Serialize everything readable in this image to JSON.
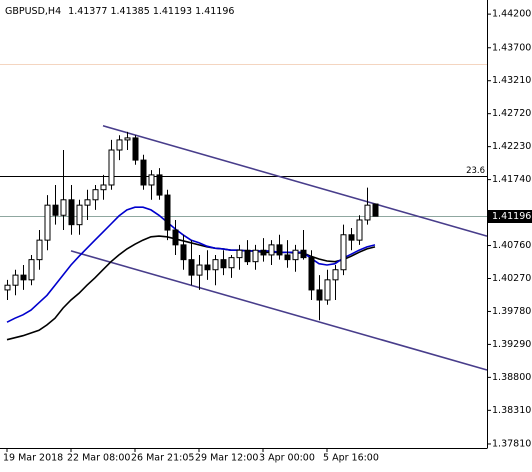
{
  "chart_data": {
    "type": "candlestick",
    "symbol": "GBPUSD,H4",
    "categories": [
      "19 Mar 2018",
      null,
      null,
      null,
      null,
      null,
      null,
      null,
      "22 Mar 08:00",
      null,
      null,
      null,
      null,
      null,
      null,
      null,
      "26 Mar 21:05",
      null,
      null,
      null,
      null,
      null,
      null,
      null,
      "29 Mar 12:00",
      null,
      null,
      null,
      null,
      null,
      null,
      null,
      "3 Apr 00:00",
      null,
      null,
      null,
      null,
      null,
      null,
      null,
      "5 Apr 16:00",
      null,
      null,
      null,
      null,
      null,
      null
    ],
    "candles": {
      "open": [
        1.401,
        1.4017,
        1.4032,
        1.4025,
        1.4055,
        1.4084,
        1.4136,
        1.4121,
        1.4144,
        1.4107,
        1.4136,
        1.4144,
        1.4159,
        1.4166,
        1.4218,
        1.4233,
        1.4236,
        1.4203,
        1.4166,
        1.4181,
        1.4151,
        1.4099,
        1.4077,
        1.4055,
        1.4032,
        1.4047,
        1.404,
        1.4055,
        1.4043,
        1.4058,
        1.4069,
        1.4052,
        1.4069,
        1.4062,
        1.4077,
        1.4062,
        1.4055,
        1.4069,
        1.4058,
        1.401,
        1.3995,
        1.4025,
        1.404,
        1.4092,
        1.4084,
        1.4114,
        1.41377
      ],
      "high": [
        1.4025,
        1.404,
        1.4047,
        1.4062,
        1.4099,
        1.4151,
        1.4166,
        1.4218,
        1.4166,
        1.4144,
        1.4159,
        1.4166,
        1.4181,
        1.4233,
        1.424,
        1.4245,
        1.424,
        1.4211,
        1.4188,
        1.4191,
        1.4159,
        1.4114,
        1.4092,
        1.4084,
        1.4062,
        1.4069,
        1.4062,
        1.4069,
        1.4062,
        1.4077,
        1.4084,
        1.4077,
        1.4087,
        1.4084,
        1.4092,
        1.4084,
        1.4077,
        1.4099,
        1.4069,
        1.4032,
        1.404,
        1.4047,
        1.4107,
        1.4102,
        1.4121,
        1.4162,
        1.41385
      ],
      "low": [
        1.3995,
        1.4002,
        1.401,
        1.4017,
        1.404,
        1.4069,
        1.4107,
        1.4099,
        1.4092,
        1.4092,
        1.4114,
        1.4129,
        1.4144,
        1.4159,
        1.4203,
        1.4218,
        1.4196,
        1.4159,
        1.4144,
        1.4144,
        1.4084,
        1.4062,
        1.404,
        1.4017,
        1.401,
        1.4025,
        1.4017,
        1.4032,
        1.4028,
        1.404,
        1.4047,
        1.404,
        1.4052,
        1.4047,
        1.4055,
        1.4043,
        1.4037,
        1.4055,
        1.3995,
        1.3965,
        1.3988,
        1.3995,
        1.4032,
        1.4069,
        1.4077,
        1.4107,
        1.41193
      ],
      "close": [
        1.4017,
        1.4032,
        1.4025,
        1.4055,
        1.4084,
        1.4136,
        1.4121,
        1.4144,
        1.4107,
        1.4136,
        1.4144,
        1.4159,
        1.4166,
        1.4218,
        1.4233,
        1.4236,
        1.4203,
        1.4166,
        1.4181,
        1.4151,
        1.4099,
        1.4077,
        1.4055,
        1.4032,
        1.4047,
        1.404,
        1.4055,
        1.4043,
        1.4058,
        1.4069,
        1.4052,
        1.4069,
        1.4062,
        1.4077,
        1.4062,
        1.4055,
        1.4069,
        1.4058,
        1.401,
        1.3995,
        1.4025,
        1.404,
        1.4092,
        1.4084,
        1.4114,
        1.4136,
        1.41196
      ]
    },
    "overlays": [
      {
        "color": "#000000",
        "values": [
          1.3936,
          1.3939,
          1.3942,
          1.3946,
          1.395,
          1.3958,
          1.3968,
          1.3983,
          1.3995,
          1.4005,
          1.4017,
          1.4028,
          1.404,
          1.4052,
          1.4062,
          1.4071,
          1.4078,
          1.4084,
          1.4089,
          1.409,
          1.4089,
          1.4086,
          1.4083,
          1.408,
          1.4077,
          1.4074,
          1.4072,
          1.4071,
          1.4069,
          1.4069,
          1.4068,
          1.4068,
          1.4066,
          1.4066,
          1.4066,
          1.4066,
          1.4065,
          1.4065,
          1.406,
          1.4056,
          1.4053,
          1.4052,
          1.4055,
          1.406,
          1.4066,
          1.4071,
          1.4074
        ]
      },
      {
        "color": "#0000cd",
        "values": [
          1.3962,
          1.3968,
          1.3973,
          1.398,
          1.3991,
          1.4002,
          1.4017,
          1.4032,
          1.4047,
          1.406,
          1.4072,
          1.4084,
          1.4096,
          1.4108,
          1.412,
          1.4129,
          1.4133,
          1.4133,
          1.4129,
          1.4121,
          1.4111,
          1.4101,
          1.4092,
          1.4084,
          1.408,
          1.4075,
          1.4072,
          1.4071,
          1.4069,
          1.4069,
          1.4068,
          1.4068,
          1.4068,
          1.4068,
          1.4066,
          1.4066,
          1.4066,
          1.4066,
          1.4057,
          1.4049,
          1.4047,
          1.4049,
          1.4057,
          1.4063,
          1.4069,
          1.4074,
          1.4077
        ]
      }
    ],
    "trendlines": [
      {
        "color": "#483d8b",
        "x": [
          12,
          60
        ],
        "y": [
          1.4254,
          1.409
        ]
      },
      {
        "color": "#483d8b",
        "x": [
          8,
          60
        ],
        "y": [
          1.4068,
          1.3891
        ]
      }
    ],
    "levels": [
      {
        "value": 1.4179,
        "label": "23.6",
        "color": "#000000"
      },
      {
        "value": 1.4346,
        "color": "#f4d5c0"
      }
    ],
    "ylim": [
      1.3775,
      1.4441
    ],
    "yticks": [
      {
        "value": 1.442,
        "label": "1.44200"
      },
      {
        "value": 1.437,
        "label": "1.43700"
      },
      {
        "value": 1.4321,
        "label": "1.43210"
      },
      {
        "value": 1.4272,
        "label": "1.42720"
      },
      {
        "value": 1.4223,
        "label": "1.42230"
      },
      {
        "value": 1.4174,
        "label": "1.41740"
      },
      {
        "value": 1.4076,
        "label": "1.40760"
      },
      {
        "value": 1.4027,
        "label": "1.40270"
      },
      {
        "value": 1.3978,
        "label": "1.39780"
      },
      {
        "value": 1.3929,
        "label": "1.39290"
      },
      {
        "value": 1.388,
        "label": "1.38800"
      },
      {
        "value": 1.3831,
        "label": "1.38310"
      },
      {
        "value": 1.3781,
        "label": "1.37810"
      }
    ],
    "up_color": "#ffffff",
    "down_color": "#000000",
    "price_line_color": "#8fa7a0"
  }
}
